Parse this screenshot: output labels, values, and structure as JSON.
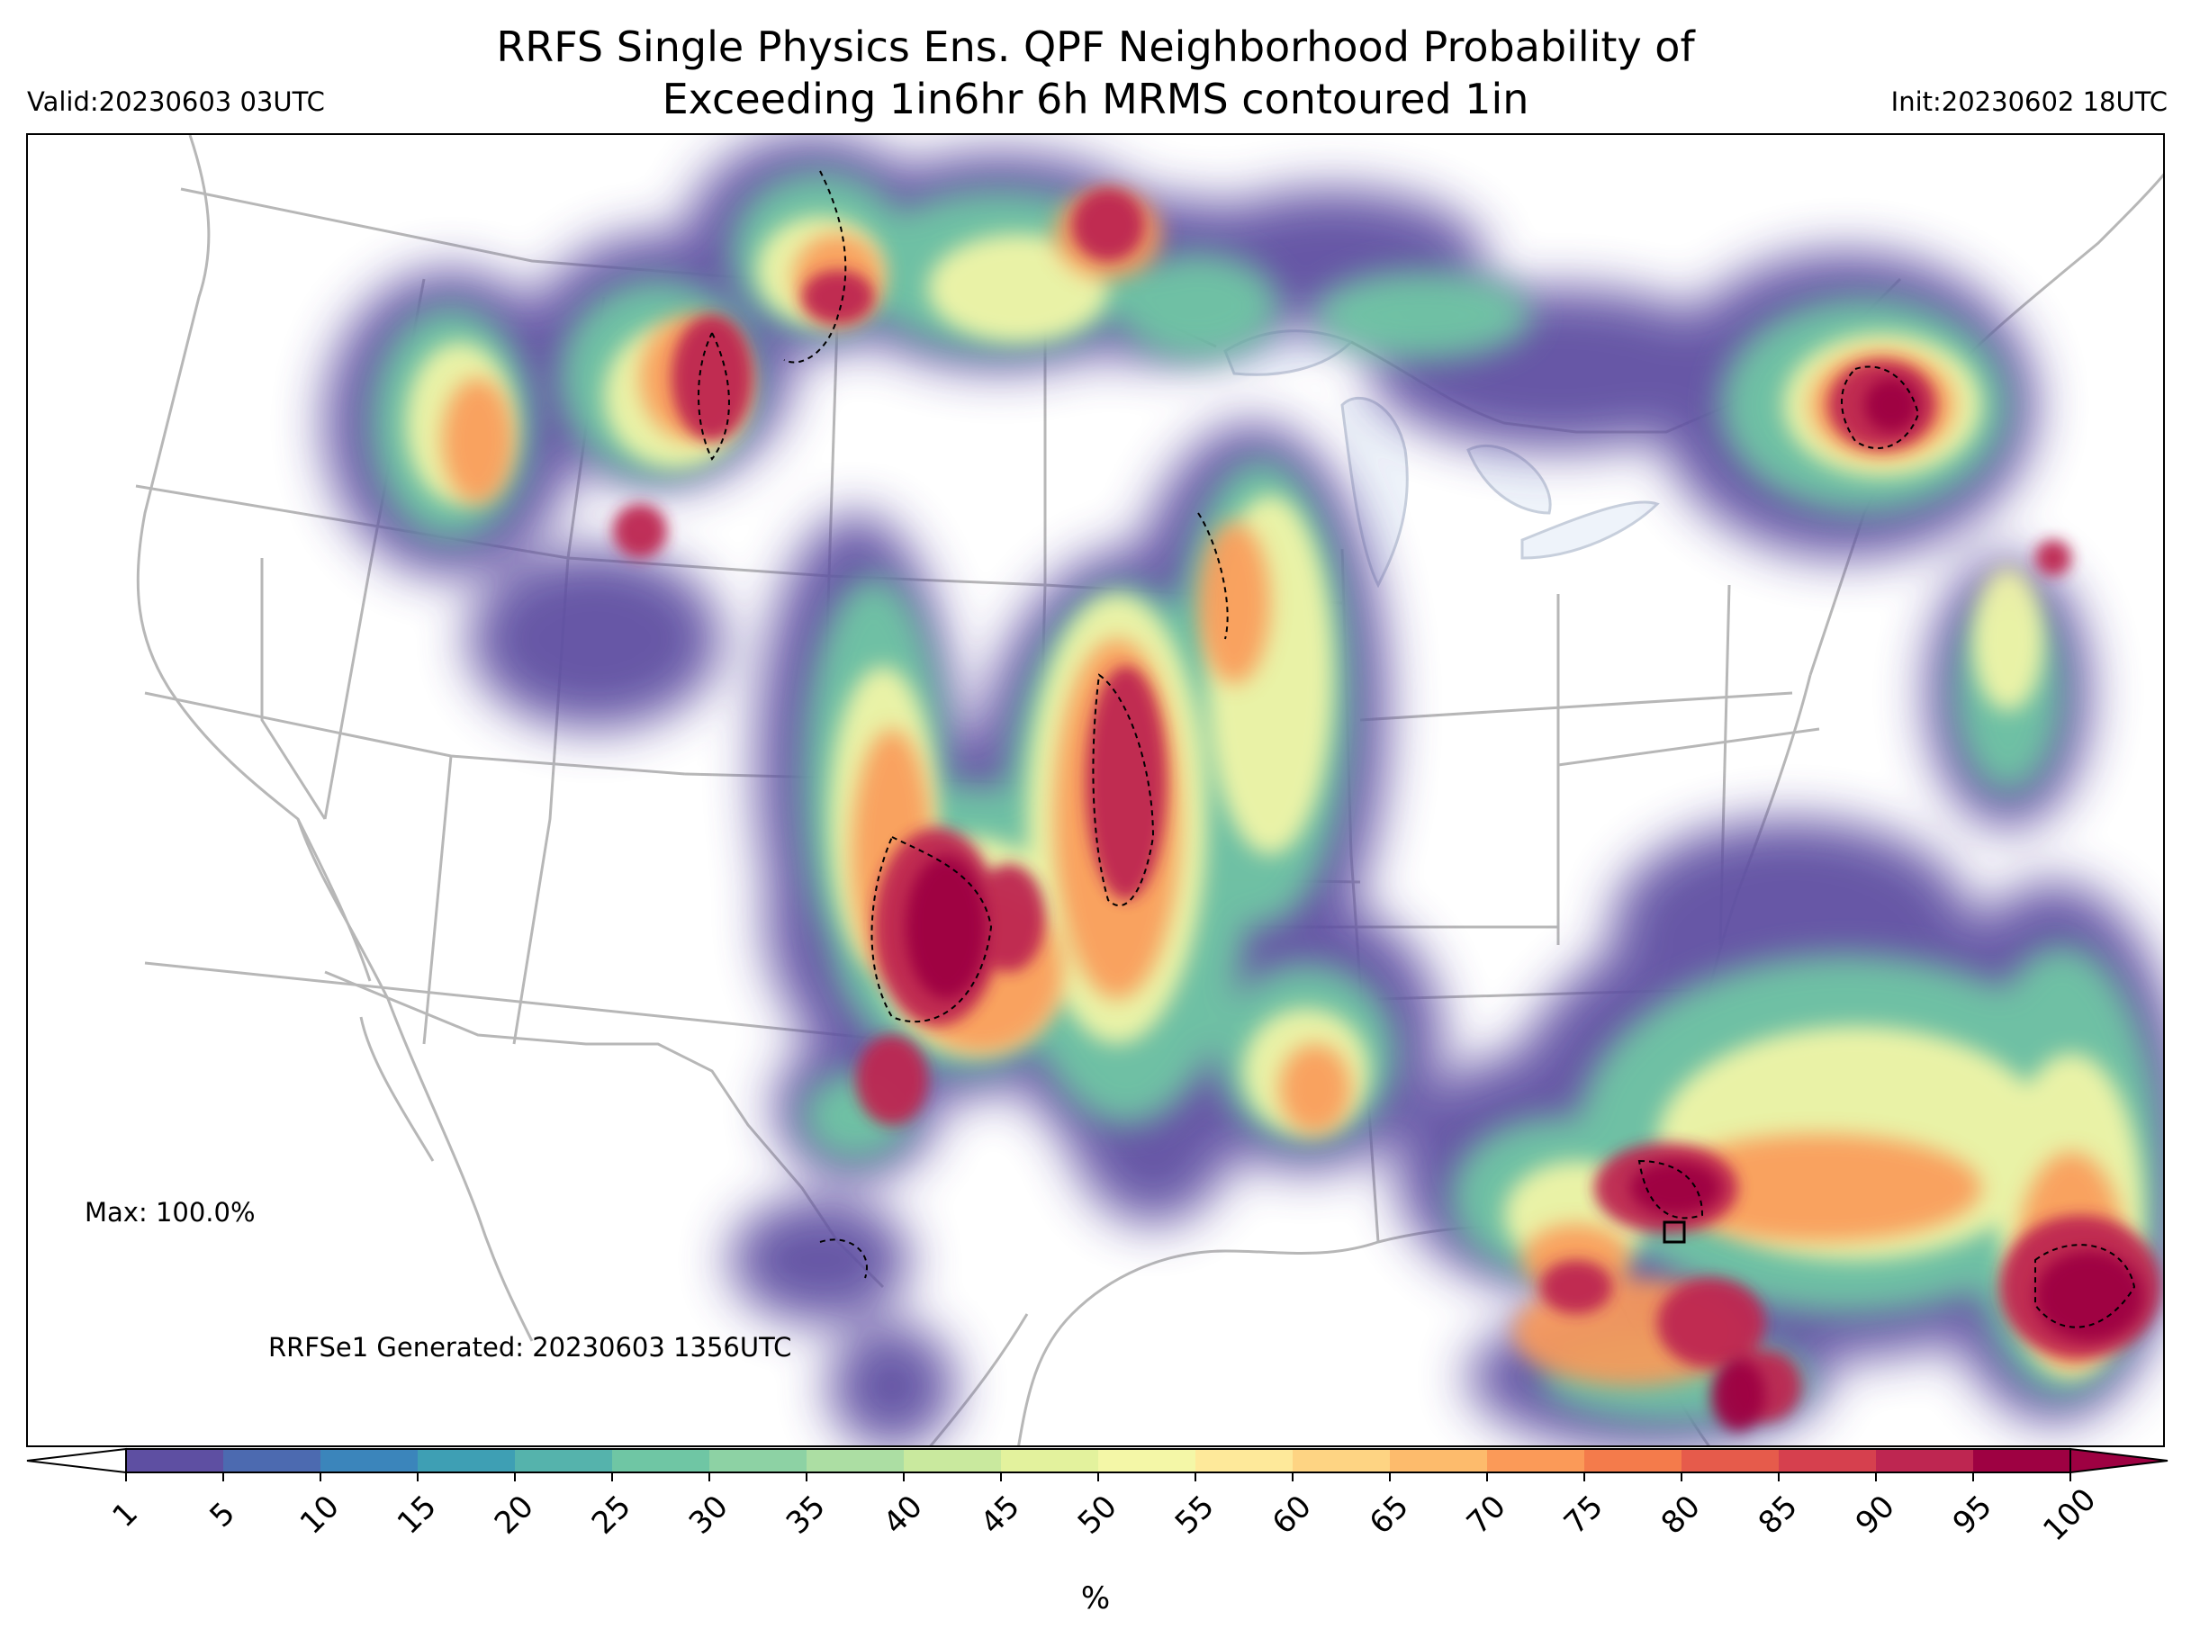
{
  "header": {
    "title_line1": "RRFS Single Physics Ens. QPF Neighborhood Probability of",
    "title_line2": "Exceeding 1in6hr 6h MRMS contoured 1in",
    "valid": "Valid:20230603 03UTC",
    "init": "Init:20230602 18UTC"
  },
  "annotations": {
    "max": "Max: 100.0%",
    "generated": "RRFSe1 Generated: 20230603 1356UTC"
  },
  "colorbar": {
    "unit": "%",
    "ticks": [
      "1",
      "5",
      "10",
      "15",
      "20",
      "25",
      "30",
      "35",
      "40",
      "45",
      "50",
      "55",
      "60",
      "65",
      "70",
      "75",
      "80",
      "85",
      "90",
      "95",
      "100"
    ],
    "colors": [
      "#5e4fa2",
      "#4c6ab0",
      "#3b85bb",
      "#3e9fb4",
      "#55b3ac",
      "#6fc6a4",
      "#8dd2a4",
      "#acdea3",
      "#c9e99e",
      "#e3f29d",
      "#f4f7a7",
      "#fee99a",
      "#fed483",
      "#fdbb6c",
      "#fb9a58",
      "#f47b4b",
      "#e65b4b",
      "#d6404e",
      "#be2651",
      "#9e0142"
    ]
  },
  "map": {
    "description_colors": {
      "lakes": "#eef3fa",
      "borders": "#b7b7b7",
      "contours": "#000000"
    }
  }
}
